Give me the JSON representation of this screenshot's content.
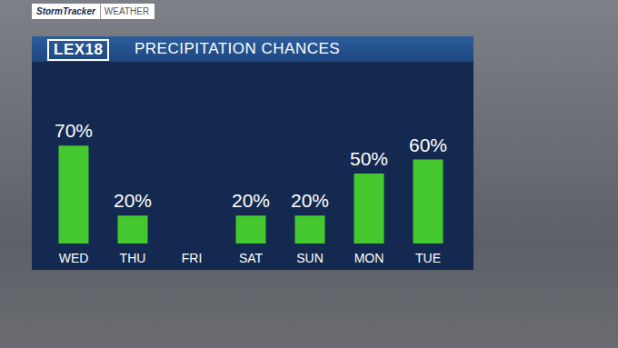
{
  "chart_data": {
    "type": "bar",
    "title": "PRECIPITATION CHANCES",
    "annotations": {
      "badge": "StormTracker",
      "badge_section": "WEATHER",
      "logo": "LEX18"
    },
    "categories": [
      "WED",
      "THU",
      "FRI",
      "SAT",
      "SUN",
      "MON",
      "TUE"
    ],
    "values": [
      70,
      20,
      null,
      20,
      20,
      50,
      60
    ],
    "value_labels": [
      "70%",
      "20%",
      null,
      "20%",
      "20%",
      "50%",
      "60%"
    ],
    "color": "#45c82f",
    "ylim": [
      0,
      100
    ],
    "grid": false,
    "data_labels": true,
    "tick_labels": "x"
  }
}
